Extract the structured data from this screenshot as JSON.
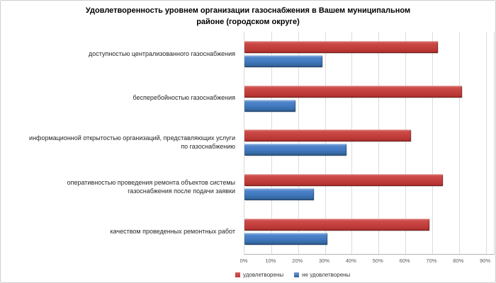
{
  "chart_data": {
    "type": "bar",
    "orientation": "horizontal",
    "title": "Удовлетворенность уровнем организации газоснабжения в Вашем муниципальном\nрайоне (городском округе)",
    "categories": [
      "доступностью централизованного газоснабжения",
      "бесперебойностью  газоснабжения",
      "информационной открытостью  организаций, представляющих услуги\nпо газоснабжению",
      "оперативностью проведения ремонта объектов системы\nгазоснабжения после подачи заявки",
      "качеством проведенных ремонтных работ"
    ],
    "series": [
      {
        "name": "удовлетворены",
        "color": "#C0403E",
        "values": [
          72,
          81,
          62,
          74,
          69
        ]
      },
      {
        "name": "не удовлетворены",
        "color": "#3E76BE",
        "values": [
          29,
          19,
          38,
          26,
          31
        ]
      }
    ],
    "x_ticks": [
      "0%",
      "10%",
      "20%",
      "30%",
      "40%",
      "50%",
      "60%",
      "70%",
      "80%",
      "90%"
    ],
    "x_tick_values": [
      0,
      10,
      20,
      30,
      40,
      50,
      60,
      70,
      80,
      90
    ],
    "xlim": [
      0,
      93
    ],
    "grid": true,
    "legend_position": "bottom",
    "gridline_color": "#DCDCDC",
    "background_color": "#FFFFFF"
  }
}
